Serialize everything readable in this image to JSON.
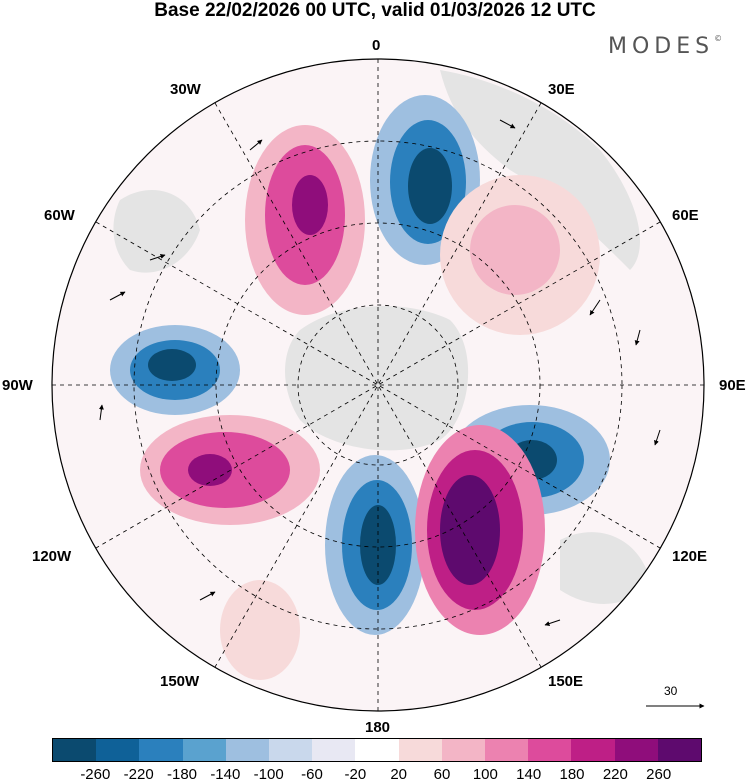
{
  "title": "Base 22/02/2026 00 UTC, valid 01/03/2026 12 UTC",
  "brand": "MODES",
  "brand_mark": "©",
  "longitude_labels": {
    "lon_0": "0",
    "lon_30e": "30E",
    "lon_60e": "60E",
    "lon_90e": "90E",
    "lon_120e": "120E",
    "lon_150e": "150E",
    "lon_180": "180",
    "lon_150w": "150W",
    "lon_120w": "120W",
    "lon_90w": "90W",
    "lon_60w": "60W",
    "lon_30w": "30W"
  },
  "reference_vector": "30",
  "colorbar": {
    "colors": [
      "#0b4a6f",
      "#0f6198",
      "#2b80bd",
      "#5aa2cf",
      "#9ebfe0",
      "#c9d8ec",
      "#e8e8f3",
      "#ffffff",
      "#f7dada",
      "#f3b5c6",
      "#ec82b0",
      "#dd4b9c",
      "#be1f86",
      "#8f0d7b",
      "#5e0a6e"
    ],
    "tick_labels": [
      "-260",
      "-220",
      "-180",
      "-140",
      "-100",
      "-60",
      "-20",
      "20",
      "60",
      "100",
      "140",
      "180",
      "220",
      "260"
    ]
  }
}
